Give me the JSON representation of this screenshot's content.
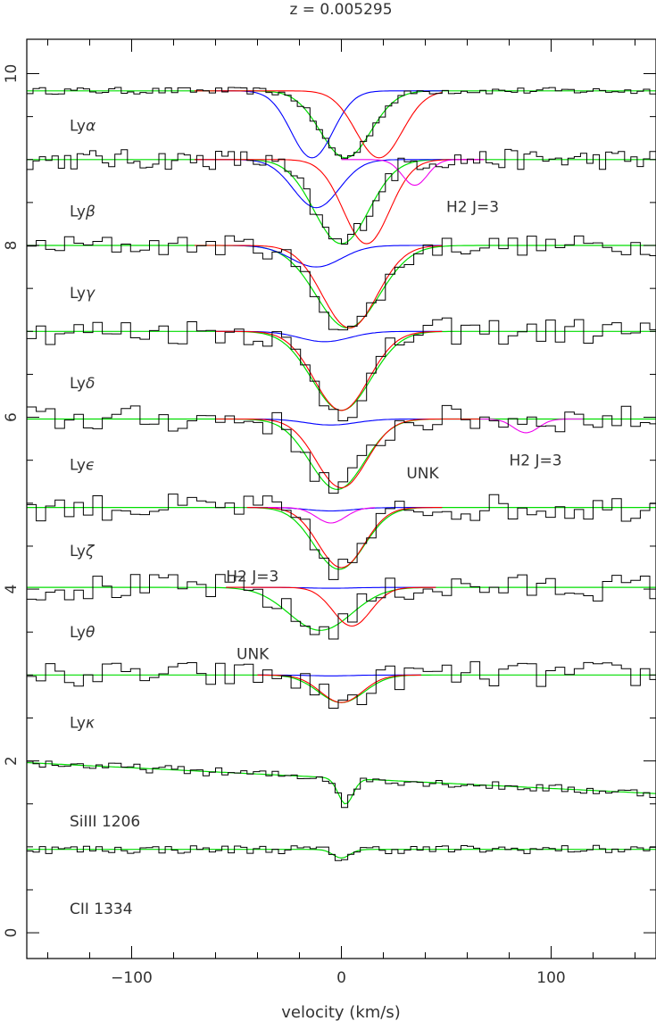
{
  "chart_data": {
    "type": "line",
    "title": "z = 0.005295",
    "xlabel": "velocity (km/s)",
    "ylabel": "",
    "xlim": [
      -150,
      150
    ],
    "ylim": [
      -0.3,
      10.4
    ],
    "x_ticks": [
      -100,
      0,
      100
    ],
    "x_tick_labels": [
      "−100",
      "0",
      "100"
    ],
    "y_ticks": [
      0,
      2,
      4,
      6,
      8,
      10
    ],
    "y_tick_labels": [
      "0",
      "2",
      "4",
      "6",
      "8",
      "10"
    ],
    "colors": {
      "data": "#000000",
      "fit": "#00dd00",
      "component_blue": "#0000ff",
      "component_red": "#ff0000",
      "h2_magenta": "#ee00ee",
      "combined": "#8b3a1a"
    },
    "panels": [
      {
        "name": "ly-alpha",
        "label_main": "Ly",
        "label_greek": "α",
        "baseline": 9.8,
        "depth": 0.78,
        "center": 2,
        "width": 24,
        "label_y": 9.4,
        "blue": {
          "c": -14,
          "w": 20,
          "d": 0.78,
          "x0": -60,
          "x1": 48
        },
        "red": {
          "c": 18,
          "w": 22,
          "d": 0.78,
          "x0": -70,
          "x1": 48
        }
      },
      {
        "name": "ly-beta",
        "label_main": "Ly",
        "label_greek": "β",
        "baseline": 9.0,
        "depth": 0.98,
        "center": 0,
        "width": 26,
        "label_y": 8.4,
        "blue": {
          "c": -12,
          "w": 22,
          "d": 0.56,
          "x0": -70,
          "x1": 68
        },
        "red": {
          "c": 12,
          "w": 22,
          "d": 0.98,
          "x0": -70,
          "x1": 68
        },
        "magenta": {
          "c": 35,
          "w": 12,
          "d": 0.3,
          "x0": 0,
          "x1": 68
        }
      },
      {
        "name": "ly-gamma",
        "label_main": "Ly",
        "label_greek": "γ",
        "baseline": 8.0,
        "depth": 0.96,
        "center": 3,
        "width": 30,
        "label_y": 7.45,
        "blue": {
          "c": -12,
          "w": 24,
          "d": 0.25,
          "x0": -70,
          "x1": 48
        },
        "red": {
          "c": 4,
          "w": 26,
          "d": 0.96,
          "x0": -70,
          "x1": 48
        }
      },
      {
        "name": "ly-delta",
        "label_main": "Ly",
        "label_greek": "δ",
        "baseline": 7.0,
        "depth": 0.92,
        "center": 0,
        "width": 28,
        "label_y": 6.4,
        "blue": {
          "c": -8,
          "w": 24,
          "d": 0.12,
          "x0": -60,
          "x1": 48
        },
        "red": {
          "c": 0,
          "w": 26,
          "d": 0.92,
          "x0": -60,
          "x1": 48
        }
      },
      {
        "name": "ly-epsilon",
        "label_main": "Ly",
        "label_greek": "ϵ",
        "baseline": 5.98,
        "depth": 0.82,
        "center": -2,
        "width": 26,
        "label_y": 5.45,
        "blue": {
          "c": -5,
          "w": 24,
          "d": 0.07,
          "x0": -60,
          "x1": 68
        },
        "red": {
          "c": 0,
          "w": 24,
          "d": 0.8,
          "x0": -60,
          "x1": 68
        },
        "magenta": {
          "c": 88,
          "w": 12,
          "d": 0.16,
          "x0": 66,
          "x1": 115
        }
      },
      {
        "name": "ly-zeta",
        "label_main": "Ly",
        "label_greek": "ζ",
        "baseline": 4.95,
        "depth": 0.72,
        "center": -1,
        "width": 24,
        "label_y": 4.45,
        "blue": {
          "c": -5,
          "w": 22,
          "d": 0.04,
          "x0": -45,
          "x1": 48
        },
        "red": {
          "c": 0,
          "w": 22,
          "d": 0.7,
          "x0": -45,
          "x1": 48
        },
        "magenta": {
          "c": -5,
          "w": 14,
          "d": 0.18,
          "x0": -35,
          "x1": 16
        }
      },
      {
        "name": "ly-theta",
        "label_main": "Ly",
        "label_greek": "θ",
        "baseline": 4.02,
        "depth": 0.5,
        "center": -10,
        "width": 30,
        "label_y": 3.5,
        "blue": {
          "c": -5,
          "w": 22,
          "d": 0.01,
          "x0": -55,
          "x1": 45
        },
        "red": {
          "c": 5,
          "w": 18,
          "d": 0.45,
          "x0": -55,
          "x1": 45
        }
      },
      {
        "name": "ly-kappa",
        "label_main": "Ly",
        "label_greek": "κ",
        "baseline": 3.0,
        "depth": 0.32,
        "center": 0,
        "width": 22,
        "label_y": 2.45,
        "blue": {
          "c": -5,
          "w": 20,
          "d": 0.01,
          "x0": -40,
          "x1": 38
        },
        "red": {
          "c": 0,
          "w": 20,
          "d": 0.32,
          "x0": -40,
          "x1": 38
        }
      },
      {
        "name": "si-iii-1206",
        "label_main": "SiIII 1206",
        "label_greek": "",
        "baseline": 1.85,
        "depth": 0.3,
        "center": 2,
        "width": 7,
        "label_y": 1.3,
        "slope": true
      },
      {
        "name": "c-ii-1334",
        "label_main": "CII 1334",
        "label_greek": "",
        "baseline": 0.97,
        "depth": 0.1,
        "center": 0,
        "width": 8,
        "label_y": 0.28
      }
    ],
    "annotations": [
      {
        "text": "H2  J=3",
        "x": 50,
        "y": 8.45
      },
      {
        "text": "UNK",
        "x": 31,
        "y": 5.35
      },
      {
        "text": "H2  J=3",
        "x": 80,
        "y": 5.5
      },
      {
        "text": "H2  J=3",
        "x": -55,
        "y": 4.15
      },
      {
        "text": "UNK",
        "x": -50,
        "y": 3.25
      }
    ]
  }
}
